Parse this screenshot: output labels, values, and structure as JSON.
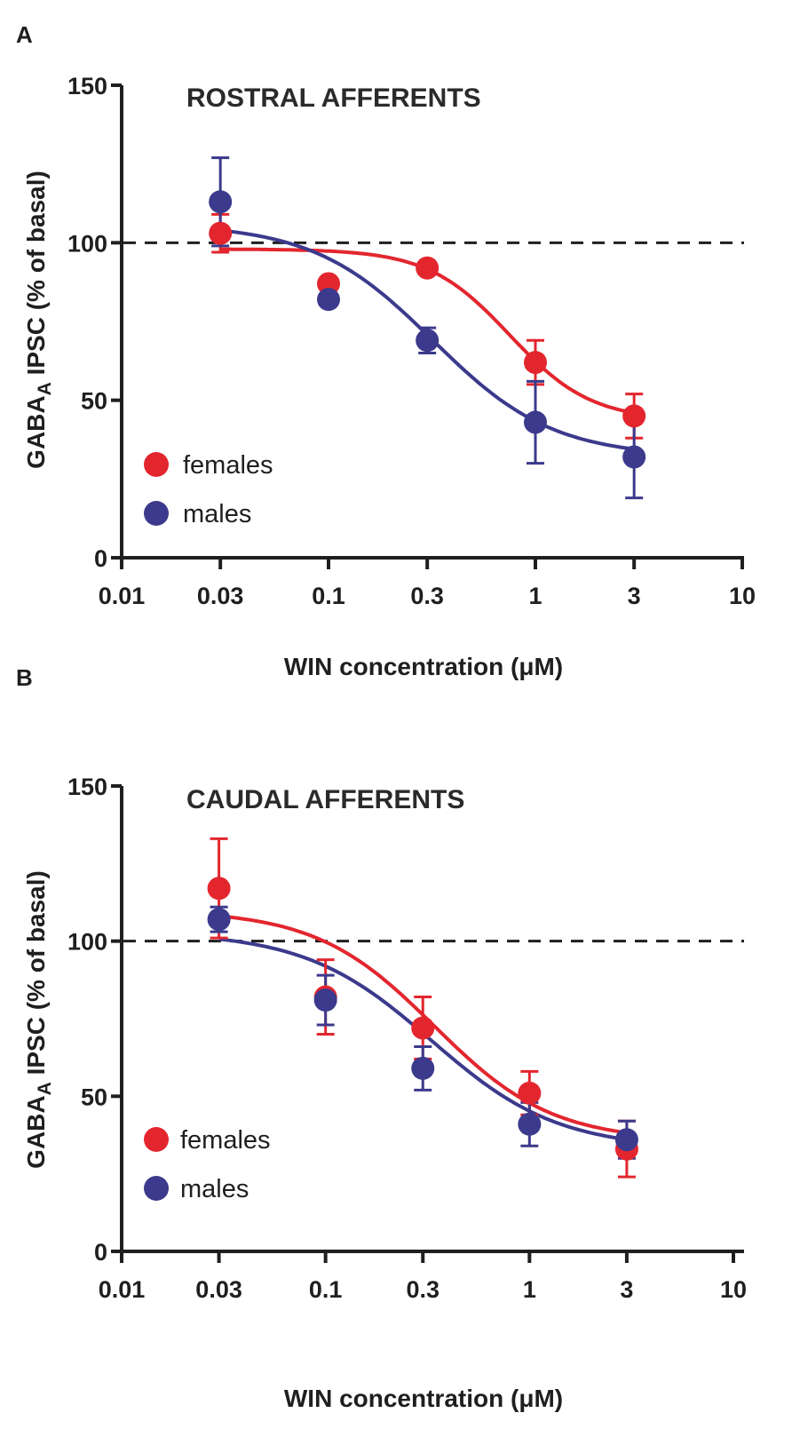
{
  "chart_data": [
    {
      "panel": "A",
      "type": "scatter",
      "title": "ROSTRAL AFFERENTS",
      "xlabel": "WIN concentration (μM)",
      "ylabel_main": "GABA",
      "ylabel_sub": "A",
      "ylabel_rest": " IPSC (% of basal)",
      "xscale": "log",
      "xlim": [
        0.01,
        10
      ],
      "ylim": [
        0,
        150
      ],
      "x_ticks": [
        0.01,
        0.03,
        0.1,
        0.3,
        1,
        3,
        10
      ],
      "x_tick_labels": [
        "0.01",
        "0.03",
        "0.1",
        "0.3",
        "1",
        "3",
        "10"
      ],
      "y_ticks": [
        0,
        50,
        100,
        150
      ],
      "y_tick_labels": [
        "0",
        "50",
        "100",
        "150"
      ],
      "reference_line": 100,
      "legend": "bottom-left",
      "series": [
        {
          "name": "females",
          "color": "#e3262e",
          "x": [
            0.03,
            0.1,
            0.3,
            1,
            3
          ],
          "y": [
            103,
            87,
            92,
            62,
            45
          ],
          "err": [
            6,
            0,
            0,
            7,
            7
          ],
          "fit": {
            "bottom": 43.5,
            "top": 98,
            "ec50": 0.75,
            "hill": 2.2
          }
        },
        {
          "name": "males",
          "color": "#3b3a8c",
          "x": [
            0.03,
            0.1,
            0.3,
            1,
            3
          ],
          "y": [
            113,
            82,
            69,
            43,
            32
          ],
          "err": [
            14,
            0,
            4,
            13,
            13
          ],
          "fit": {
            "bottom": 32,
            "top": 106,
            "ec50": 0.32,
            "hill": 1.5
          }
        }
      ]
    },
    {
      "panel": "B",
      "type": "scatter",
      "title": "CAUDAL AFFERENTS",
      "xlabel": "WIN concentration (μM)",
      "ylabel_main": "GABA",
      "ylabel_sub": "A",
      "ylabel_rest": " IPSC (% of basal)",
      "xscale": "log",
      "xlim": [
        0.01,
        10
      ],
      "ylim": [
        0,
        150
      ],
      "x_ticks": [
        0.01,
        0.03,
        0.1,
        0.3,
        1,
        3,
        10
      ],
      "x_tick_labels": [
        "0.01",
        "0.03",
        "0.1",
        "0.3",
        "1",
        "3",
        "10"
      ],
      "y_ticks": [
        0,
        50,
        100,
        150
      ],
      "y_tick_labels": [
        "0",
        "50",
        "100",
        "150"
      ],
      "reference_line": 100,
      "legend": "bottom-left",
      "series": [
        {
          "name": "females",
          "color": "#e3262e",
          "x": [
            0.03,
            0.1,
            0.3,
            1,
            3
          ],
          "y": [
            117,
            82,
            72,
            51,
            33
          ],
          "err": [
            16,
            12,
            10,
            7,
            9
          ],
          "fit": {
            "bottom": 35.5,
            "top": 110,
            "ec50": 0.34,
            "hill": 1.5
          }
        },
        {
          "name": "males",
          "color": "#3b3a8c",
          "x": [
            0.03,
            0.1,
            0.3,
            1,
            3
          ],
          "y": [
            107,
            81,
            59,
            41,
            36
          ],
          "err": [
            4,
            8,
            7,
            7,
            6
          ],
          "fit": {
            "bottom": 33,
            "top": 103,
            "ec50": 0.33,
            "hill": 1.4
          }
        }
      ]
    }
  ]
}
